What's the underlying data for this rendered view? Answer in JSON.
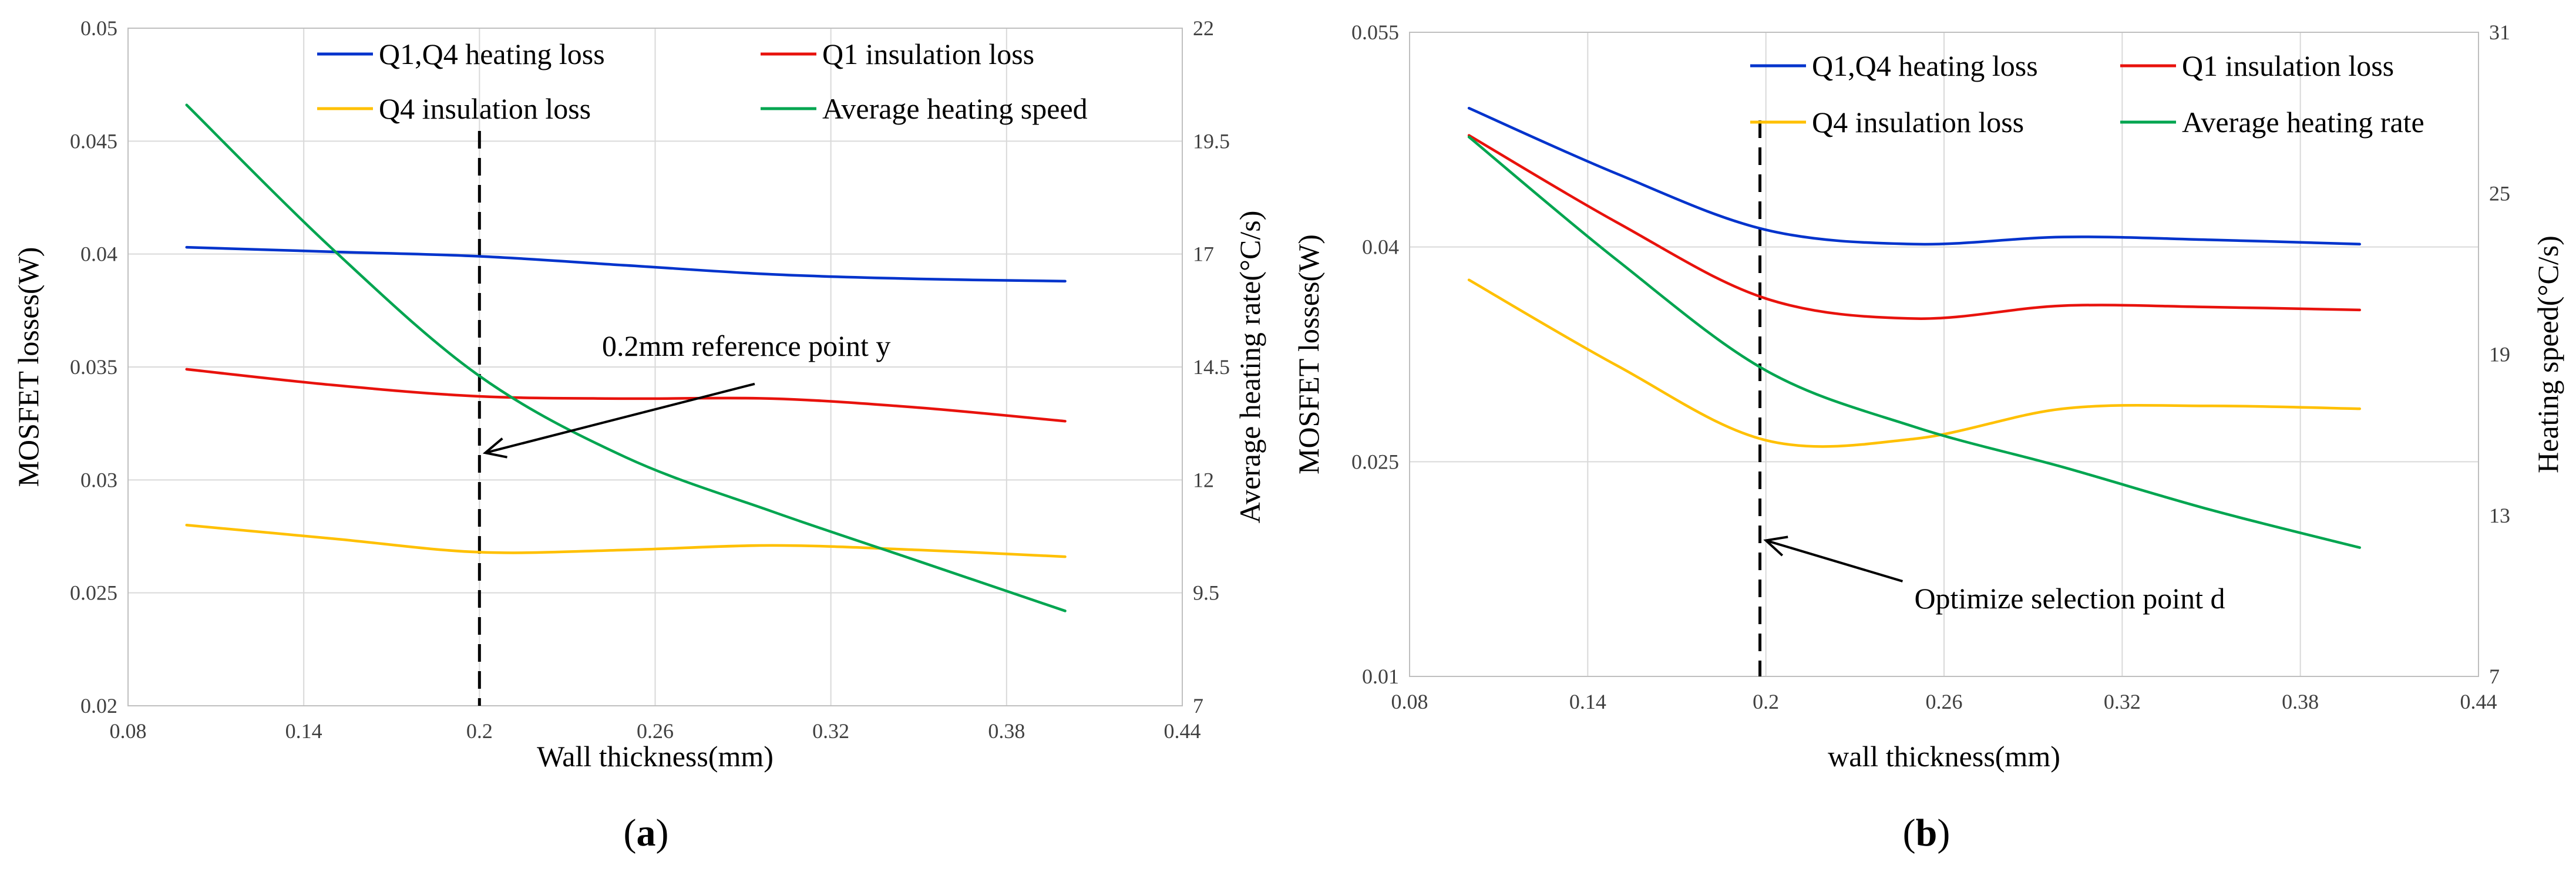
{
  "chart_data": [
    {
      "type": "line",
      "id": "a",
      "caption": "a",
      "xlabel": "Wall thickness(mm)",
      "ylabel": "MOSFET losses(W)",
      "y2label": "Average heating rate(°C/s)",
      "xlim": [
        0.08,
        0.44
      ],
      "ylim": [
        0.02,
        0.05
      ],
      "y2lim": [
        7,
        22
      ],
      "xticks": [
        "0.08",
        "0.14",
        "0.2",
        "0.26",
        "0.32",
        "0.38",
        "0.44"
      ],
      "yticks": [
        "0.02",
        "0.025",
        "0.03",
        "0.035",
        "0.04",
        "0.045",
        "0.05"
      ],
      "y2ticks": [
        "7",
        "9.5",
        "12",
        "14.5",
        "17",
        "19.5",
        "22"
      ],
      "grid": true,
      "legend_position": "top",
      "reference_line_x": 0.2,
      "annotation": {
        "text": "0.2mm reference point y",
        "target_x": 0.202,
        "target_y": 0.0312,
        "text_x": 0.3,
        "text_y": 0.0355
      },
      "series": [
        {
          "name": "Q1,Q4 heating loss",
          "color": "#0033cc",
          "axis": "left",
          "x": [
            0.1,
            0.15,
            0.2,
            0.25,
            0.3,
            0.35,
            0.4
          ],
          "values": [
            0.0403,
            0.0401,
            0.0399,
            0.0395,
            0.0391,
            0.0389,
            0.0388
          ]
        },
        {
          "name": "Q1 insulation loss",
          "color": "#e8120c",
          "axis": "left",
          "x": [
            0.1,
            0.15,
            0.2,
            0.25,
            0.3,
            0.35,
            0.4
          ],
          "values": [
            0.0349,
            0.0342,
            0.0337,
            0.0336,
            0.0336,
            0.0332,
            0.0326
          ]
        },
        {
          "name": "Q4 insulation loss",
          "color": "#ffc000",
          "axis": "left",
          "x": [
            0.1,
            0.15,
            0.2,
            0.25,
            0.3,
            0.35,
            0.4
          ],
          "values": [
            0.028,
            0.0274,
            0.0268,
            0.0269,
            0.0271,
            0.0269,
            0.0266
          ]
        },
        {
          "name": "Average heating speed",
          "color": "#00a550",
          "axis": "right",
          "x": [
            0.1,
            0.15,
            0.2,
            0.25,
            0.3,
            0.35,
            0.4
          ],
          "values": [
            20.3,
            17.1,
            14.3,
            12.5,
            11.3,
            10.2,
            9.1
          ]
        }
      ]
    },
    {
      "type": "line",
      "id": "b",
      "caption": "b",
      "xlabel": "wall thickness(mm)",
      "ylabel": "MOSFET losses(W)",
      "y2label": "Heating speed(°C/s)",
      "xlim": [
        0.08,
        0.44
      ],
      "ylim": [
        0.01,
        0.055
      ],
      "y2lim": [
        7,
        31
      ],
      "xticks": [
        "0.08",
        "0.14",
        "0.2",
        "0.26",
        "0.32",
        "0.38",
        "0.44"
      ],
      "yticks": [
        "0.01",
        "0.025",
        "0.04",
        "0.055"
      ],
      "y2ticks": [
        "7",
        "13",
        "19",
        "25",
        "31"
      ],
      "grid": true,
      "legend_position": "top",
      "reference_line_x": 0.198,
      "annotation": {
        "text": "Optimize selection point d",
        "target_x": 0.2,
        "target_y": 0.0195,
        "text_x": 0.25,
        "text_y": 0.0155
      },
      "series": [
        {
          "name": "Q1,Q4 heating loss",
          "color": "#0033cc",
          "axis": "left",
          "x": [
            0.1,
            0.15,
            0.2,
            0.25,
            0.3,
            0.35,
            0.4
          ],
          "values": [
            0.0497,
            0.0451,
            0.0412,
            0.0402,
            0.0407,
            0.0405,
            0.0402
          ]
        },
        {
          "name": "Q1 insulation loss",
          "color": "#e8120c",
          "axis": "left",
          "x": [
            0.1,
            0.15,
            0.2,
            0.25,
            0.3,
            0.35,
            0.4
          ],
          "values": [
            0.0478,
            0.0417,
            0.0364,
            0.035,
            0.0359,
            0.0358,
            0.0356
          ]
        },
        {
          "name": "Q4 insulation loss",
          "color": "#ffc000",
          "axis": "left",
          "x": [
            0.1,
            0.15,
            0.2,
            0.25,
            0.3,
            0.35,
            0.4
          ],
          "values": [
            0.0377,
            0.0317,
            0.0265,
            0.0266,
            0.0287,
            0.0289,
            0.0287
          ]
        },
        {
          "name": "Average heating rate",
          "color": "#00a550",
          "axis": "right",
          "x": [
            0.1,
            0.15,
            0.2,
            0.25,
            0.3,
            0.35,
            0.4
          ],
          "values": [
            27.1,
            22.5,
            18.4,
            16.3,
            14.8,
            13.2,
            11.8
          ]
        }
      ]
    }
  ]
}
